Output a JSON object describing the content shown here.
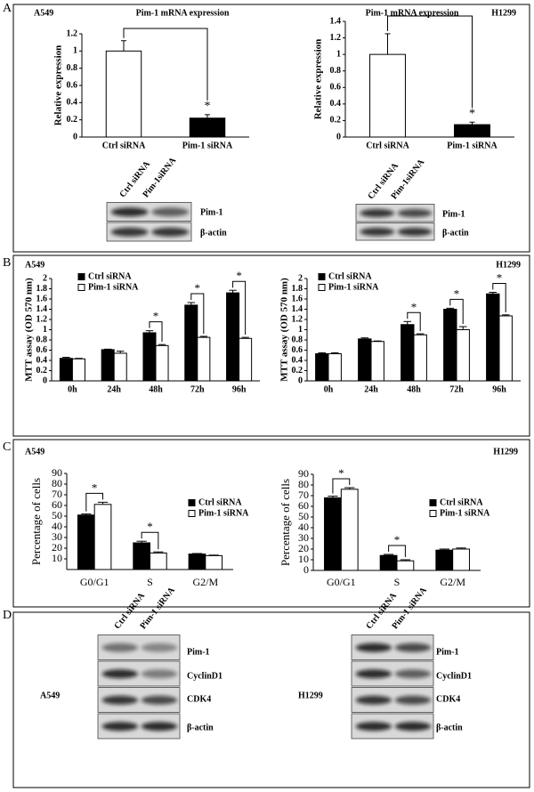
{
  "panels": [
    "A",
    "B",
    "C",
    "D"
  ],
  "chart_data": [
    {
      "type": "bar",
      "label": "A549",
      "title": "Pim-1 mRNA expression",
      "ylabel": "Relative expression",
      "categories": [
        "Ctrl siRNA",
        "Pim-1 siRNA"
      ],
      "values": [
        1.0,
        0.22
      ],
      "errors": [
        0.12,
        0.04
      ],
      "colors": [
        "#ffffff",
        "#000000"
      ],
      "stars": [
        null,
        "*"
      ],
      "ylim": [
        0,
        1.2
      ],
      "yticks": [
        0,
        0.2,
        0.4,
        0.6,
        0.8,
        1,
        1.2
      ]
    },
    {
      "type": "bar",
      "label": "H1299",
      "title": "Pim-1 mRNA expression",
      "ylabel": "Relative expression",
      "categories": [
        "Ctrl siRNA",
        "Pim-1 siRNA"
      ],
      "values": [
        1.0,
        0.15
      ],
      "errors": [
        0.25,
        0.03
      ],
      "colors": [
        "#ffffff",
        "#000000"
      ],
      "stars": [
        null,
        "*"
      ],
      "ylim": [
        0,
        1.4
      ],
      "yticks": [
        0,
        0.2,
        0.4,
        0.6,
        0.8,
        1,
        1.2,
        1.4
      ]
    },
    {
      "type": "bar",
      "label": "A549",
      "ylabel": "MTT assay (OD 570 nm)",
      "categories": [
        "0h",
        "24h",
        "48h",
        "72h",
        "96h"
      ],
      "series": [
        {
          "name": "Ctrl siRNA",
          "color": "#000000",
          "values": [
            0.44,
            0.61,
            0.94,
            1.48,
            1.72
          ],
          "errors": [
            0.02,
            0.01,
            0.04,
            0.05,
            0.05
          ]
        },
        {
          "name": "Pim-1 siRNA",
          "color": "#ffffff",
          "values": [
            0.43,
            0.54,
            0.69,
            0.85,
            0.83
          ],
          "errors": [
            0.01,
            0.04,
            0.02,
            0.02,
            0.02
          ]
        }
      ],
      "stars": [
        null,
        null,
        "*",
        "*",
        "*"
      ],
      "ylim": [
        0,
        2
      ],
      "yticks": [
        0,
        0.2,
        0.4,
        0.6,
        0.8,
        1,
        1.2,
        1.4,
        1.6,
        1.8,
        2
      ]
    },
    {
      "type": "bar",
      "label": "H1299",
      "ylabel": "MTT assay (OD 570 nm)",
      "categories": [
        "0h",
        "24h",
        "48h",
        "72h",
        "96h"
      ],
      "series": [
        {
          "name": "Ctrl siRNA",
          "color": "#000000",
          "values": [
            0.53,
            0.82,
            1.1,
            1.4,
            1.7
          ],
          "errors": [
            0.02,
            0.02,
            0.06,
            0.02,
            0.03
          ]
        },
        {
          "name": "Pim-1 siRNA",
          "color": "#ffffff",
          "values": [
            0.53,
            0.77,
            0.9,
            1.0,
            1.27
          ],
          "errors": [
            0.02,
            0.01,
            0.02,
            0.06,
            0.02
          ]
        }
      ],
      "stars": [
        null,
        null,
        "*",
        "*",
        "*"
      ],
      "ylim": [
        0,
        2
      ],
      "yticks": [
        0,
        0.2,
        0.4,
        0.6,
        0.8,
        1,
        1.2,
        1.4,
        1.6,
        1.8,
        2
      ]
    },
    {
      "type": "bar",
      "label": "A549",
      "ylabel": "Percentage of cells",
      "categories": [
        "G0/G1",
        "S",
        "G2/M"
      ],
      "series": [
        {
          "name": "Ctrl siRNA",
          "color": "#000000",
          "values": [
            51,
            25,
            14.5
          ],
          "errors": [
            1,
            1.5,
            0.5
          ]
        },
        {
          "name": "Pim-1 siRNA",
          "color": "#ffffff",
          "values": [
            61,
            15.5,
            13
          ],
          "errors": [
            2,
            1,
            0.5
          ]
        }
      ],
      "stars": [
        "*",
        "*",
        null
      ],
      "ylim": [
        0,
        90
      ],
      "yticks": [
        10,
        20,
        30,
        40,
        50,
        60,
        70,
        80,
        90
      ]
    },
    {
      "type": "bar",
      "label": "H1299",
      "ylabel": "Percentage of cells",
      "categories": [
        "G0/G1",
        "S",
        "G2/M"
      ],
      "series": [
        {
          "name": "Ctrl siRNA",
          "color": "#000000",
          "values": [
            68,
            14,
            19
          ],
          "errors": [
            1.5,
            1,
            1
          ]
        },
        {
          "name": "Pim-1 siRNA",
          "color": "#ffffff",
          "values": [
            76,
            9,
            20
          ],
          "errors": [
            1.5,
            1,
            1
          ]
        }
      ],
      "stars": [
        "*",
        "*",
        null
      ],
      "ylim": [
        0,
        90
      ],
      "yticks": [
        0,
        10,
        20,
        30,
        40,
        50,
        60,
        70,
        80,
        90
      ]
    }
  ],
  "blots": [
    {
      "lanes": [
        "Ctrl siRNA",
        "Pim-1siRNA"
      ],
      "proteins": [
        "Pim-1",
        "β-actin"
      ]
    },
    {
      "lanes": [
        "Ctrl siRNA",
        "Pim-1siRNA"
      ],
      "proteins": [
        "Pim-1",
        "β-actin"
      ]
    },
    {
      "cell_line": "A549",
      "lanes": [
        "Ctrl siRNA",
        "Pim-1 siRNA"
      ],
      "proteins": [
        "Pim-1",
        "CyclinD1",
        "CDK4",
        "β-actin"
      ]
    },
    {
      "cell_line": "H1299",
      "lanes": [
        "Ctrl siRNA",
        "Pim-1 siRNA"
      ],
      "proteins": [
        "Pim-1",
        "CyclinD1",
        "CDK4",
        "β-actin"
      ]
    }
  ]
}
